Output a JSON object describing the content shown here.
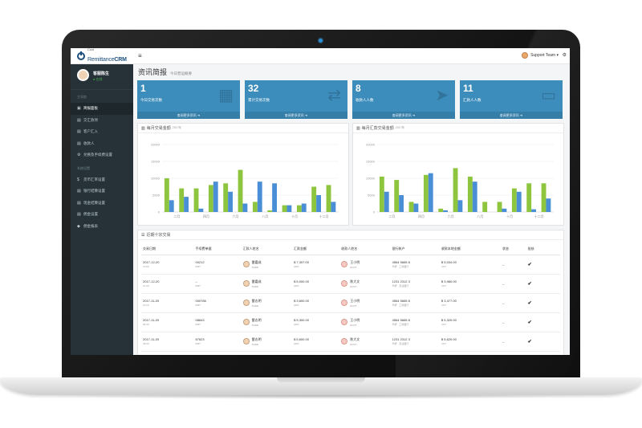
{
  "app": {
    "logo_small": "Cool",
    "logo_main": "Remittance",
    "logo_strong": "CRM",
    "support_label": "Support Team ▾"
  },
  "sidebar": {
    "user_name": "客服陈生",
    "user_status": "● 在线",
    "header_main": "主导航",
    "header_settings": "系统设置",
    "items": [
      {
        "icon": "dashboard-icon",
        "glyph": "▣",
        "label": "简报面板",
        "active": true
      },
      {
        "icon": "user-icon",
        "glyph": "▤",
        "label": "交汇款项",
        "active": false
      },
      {
        "icon": "user-icon",
        "glyph": "▤",
        "label": "客户汇入",
        "active": false
      },
      {
        "icon": "user-icon",
        "glyph": "▤",
        "label": "收款人",
        "active": false
      },
      {
        "icon": "gear-icon",
        "glyph": "⚙",
        "label": "兑换及手续费设置",
        "active": false
      }
    ],
    "settings_items": [
      {
        "icon": "dollar-icon",
        "glyph": "$",
        "label": "货币汇率设置"
      },
      {
        "icon": "list-icon",
        "glyph": "▤",
        "label": "银行结算设置"
      },
      {
        "icon": "list-icon",
        "glyph": "▤",
        "label": "现金结算设置"
      },
      {
        "icon": "list-icon",
        "glyph": "▤",
        "label": "佣金设置"
      },
      {
        "icon": "tag-icon",
        "glyph": "◆",
        "label": "佣金报表"
      }
    ]
  },
  "page": {
    "title": "资讯简报",
    "subtitle": "今日营运概要"
  },
  "kpis": [
    {
      "value": "1",
      "label": "今日交易次数",
      "footer": "查阅更多资讯 ➜",
      "color": "#3c8dbc",
      "icon": "calendar-icon",
      "glyph": "▦"
    },
    {
      "value": "32",
      "label": "累计交易次数",
      "footer": "查阅更多资讯 ➜",
      "color": "#3c8dbc",
      "icon": "exchange-icon",
      "glyph": "⇄"
    },
    {
      "value": "8",
      "label": "收款人人数",
      "footer": "查阅更多资讯 ➜",
      "color": "#3c8dbc",
      "icon": "paper-plane-icon",
      "glyph": "➤"
    },
    {
      "value": "11",
      "label": "汇款人人数",
      "footer": "查阅更多资讯 ➜",
      "color": "#3c8dbc",
      "icon": "inbox-icon",
      "glyph": "▭"
    }
  ],
  "panels": {
    "chart_left_title": "每月交易金额",
    "chart_left_sub": "2017年",
    "chart_right_title": "每月汇款交易金额",
    "chart_right_sub": "2017年",
    "table_title": "近期十宗交易"
  },
  "colors": {
    "green": "#8dc53e",
    "blue": "#4a8fd6",
    "sidebar_bg": "#263238"
  },
  "chart_data": [
    {
      "type": "bar",
      "title": "每月交易金额",
      "categories": [
        "二月",
        "",
        "四月",
        "",
        "六月",
        "",
        "八月",
        "",
        "十月",
        "",
        "十二月",
        ""
      ],
      "x_tick_labels": [
        "二月",
        "四月",
        "六月",
        "八月",
        "十月",
        "十二月"
      ],
      "ylim": [
        0,
        20000
      ],
      "y_ticks": [
        "0",
        "5000",
        "10000",
        "15000",
        "20000"
      ],
      "series": [
        {
          "color": "#8dc53e",
          "values": [
            10000,
            7000,
            7000,
            8000,
            8500,
            12500,
            3000,
            500,
            2000,
            2000,
            7500,
            8000
          ]
        },
        {
          "color": "#4a8fd6",
          "values": [
            3500,
            4500,
            1000,
            9000,
            6000,
            2500,
            9000,
            8500,
            2000,
            2500,
            5000,
            3000
          ]
        }
      ]
    },
    {
      "type": "bar",
      "title": "每月汇款交易金额",
      "categories": [
        "二月",
        "",
        "四月",
        "",
        "六月",
        "",
        "八月",
        "",
        "十月",
        "",
        "十二月",
        ""
      ],
      "x_tick_labels": [
        "二月",
        "四月",
        "六月",
        "八月",
        "十月",
        "十二月"
      ],
      "ylim": [
        0,
        20000
      ],
      "y_ticks": [
        "0",
        "5000",
        "10000",
        "15000",
        "20000"
      ],
      "series": [
        {
          "color": "#8dc53e",
          "values": [
            10500,
            9500,
            3000,
            11000,
            1000,
            13000,
            10500,
            3000,
            3000,
            7000,
            8500,
            8500
          ]
        },
        {
          "color": "#4a8fd6",
          "values": [
            6000,
            5000,
            2500,
            11500,
            500,
            3500,
            9000,
            0,
            1000,
            6000,
            800,
            4000
          ]
        }
      ]
    }
  ],
  "table": {
    "headers": [
      "交易日期",
      "手续费单据",
      "汇款人姓名",
      "汇款金额",
      "收款人姓名",
      "银行帐户",
      "收款本地金额",
      "状态",
      "批核"
    ],
    "rows": [
      {
        "date": "2017-12-20",
        "date_sub": "13:05",
        "ref": "00212",
        "ref_sub": "RMT",
        "sender": "雷嘉成",
        "sender_sub": "SNDR",
        "amount": "$ 7,307.00",
        "amount_sub": "HKD",
        "recipient": "王小明",
        "recipient_sub": "RCPT",
        "account": "4564 5665 8",
        "account_sub": "华侨 · 工商银行",
        "local": "$ 5,034.00",
        "local_sub": "CNY",
        "status": "–",
        "approved": "✔"
      },
      {
        "date": "2017-12-20",
        "date_sub": "12:40",
        "ref": "–",
        "ref_sub": "RMT",
        "sender": "雷嘉成",
        "sender_sub": "SNDR",
        "amount": "$ 5,000.00",
        "amount_sub": "HKD",
        "recipient": "陈大文",
        "recipient_sub": "RCPT",
        "account": "1231 2312 3",
        "account_sub": "华侨 · 农业银行",
        "local": "$ 3,980.00",
        "local_sub": "CNY",
        "status": "–",
        "approved": "✔"
      },
      {
        "date": "2017-11-20",
        "date_sub": "10:15",
        "ref": "000786",
        "ref_sub": "RMT",
        "sender": "雷志明",
        "sender_sub": "SNDR",
        "amount": "$ 3,600.00",
        "amount_sub": "HKD",
        "recipient": "王小明",
        "recipient_sub": "RCPT",
        "account": "4564 5665 8",
        "account_sub": "华侨 · 工商银行",
        "local": "$ 3,477.00",
        "local_sub": "CNY",
        "status": "–",
        "approved": "✔"
      },
      {
        "date": "2017-11-20",
        "date_sub": "09:30",
        "ref": "08643",
        "ref_sub": "RMT",
        "sender": "雷志明",
        "sender_sub": "SNDR",
        "amount": "$ 5,300.00",
        "amount_sub": "HKD",
        "recipient": "王小明",
        "recipient_sub": "RCPT",
        "account": "4564 5665 8",
        "account_sub": "华侨 · 工商银行",
        "local": "$ 5,320.00",
        "local_sub": "CNY",
        "status": "–",
        "approved": "✔"
      },
      {
        "date": "2017-11-20",
        "date_sub": "09:00",
        "ref": "87623",
        "ref_sub": "RMT",
        "sender": "雷志明",
        "sender_sub": "SNDR",
        "amount": "$ 5,600.00",
        "amount_sub": "HKD",
        "recipient": "陈大文",
        "recipient_sub": "RCPT",
        "account": "1231 2312 3",
        "account_sub": "华侨 · 农业银行",
        "local": "$ 5,620.00",
        "local_sub": "CNY",
        "status": "–",
        "approved": "✔"
      }
    ]
  }
}
